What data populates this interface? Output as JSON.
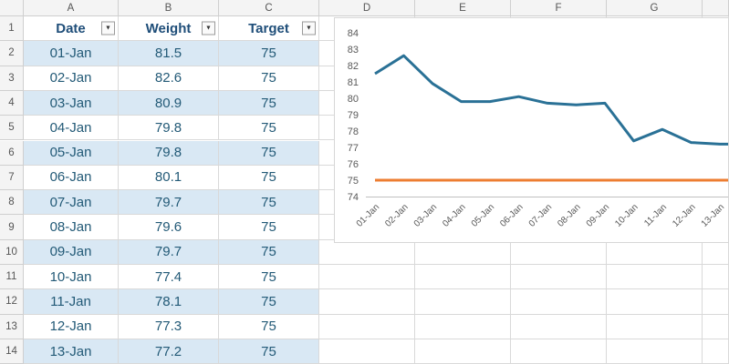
{
  "spreadsheet": {
    "column_headers": [
      "A",
      "B",
      "C",
      "D",
      "E",
      "F",
      "G"
    ],
    "row_numbers": [
      "1",
      "2",
      "3",
      "4",
      "5",
      "6",
      "7",
      "8",
      "9",
      "10",
      "11",
      "12",
      "13",
      "14"
    ],
    "table": {
      "headers": [
        {
          "label": "Date"
        },
        {
          "label": "Weight"
        },
        {
          "label": "Target"
        }
      ],
      "rows": [
        [
          "01-Jan",
          "81.5",
          "75"
        ],
        [
          "02-Jan",
          "82.6",
          "75"
        ],
        [
          "03-Jan",
          "80.9",
          "75"
        ],
        [
          "04-Jan",
          "79.8",
          "75"
        ],
        [
          "05-Jan",
          "79.8",
          "75"
        ],
        [
          "06-Jan",
          "80.1",
          "75"
        ],
        [
          "07-Jan",
          "79.7",
          "75"
        ],
        [
          "08-Jan",
          "79.6",
          "75"
        ],
        [
          "09-Jan",
          "79.7",
          "75"
        ],
        [
          "10-Jan",
          "77.4",
          "75"
        ],
        [
          "11-Jan",
          "78.1",
          "75"
        ],
        [
          "12-Jan",
          "77.3",
          "75"
        ],
        [
          "13-Jan",
          "77.2",
          "75"
        ]
      ],
      "filter_glyph": "▼"
    },
    "colors": {
      "band_fill": "#D9E8F4",
      "header_text": "#1F4E79",
      "data_text": "#235A77",
      "gridline": "#D9D9D9"
    }
  },
  "chart_data": {
    "type": "line",
    "title": "",
    "x": [
      "01-Jan",
      "02-Jan",
      "03-Jan",
      "04-Jan",
      "05-Jan",
      "06-Jan",
      "07-Jan",
      "08-Jan",
      "09-Jan",
      "10-Jan",
      "11-Jan",
      "12-Jan",
      "13-Jan"
    ],
    "series": [
      {
        "name": "Weight",
        "color": "#2A7196",
        "values": [
          81.5,
          82.6,
          80.9,
          79.8,
          79.8,
          80.1,
          79.7,
          79.6,
          79.7,
          77.4,
          78.1,
          77.3,
          77.2
        ]
      },
      {
        "name": "Target",
        "color": "#ED7D31",
        "values": [
          75,
          75,
          75,
          75,
          75,
          75,
          75,
          75,
          75,
          75,
          75,
          75,
          75
        ]
      }
    ],
    "ylim": [
      74,
      84
    ],
    "yticks": [
      84,
      83,
      82,
      81,
      80,
      79,
      78,
      77,
      76,
      75,
      74
    ],
    "grid": false,
    "legend": "none",
    "axis_text_color": "#595959"
  }
}
